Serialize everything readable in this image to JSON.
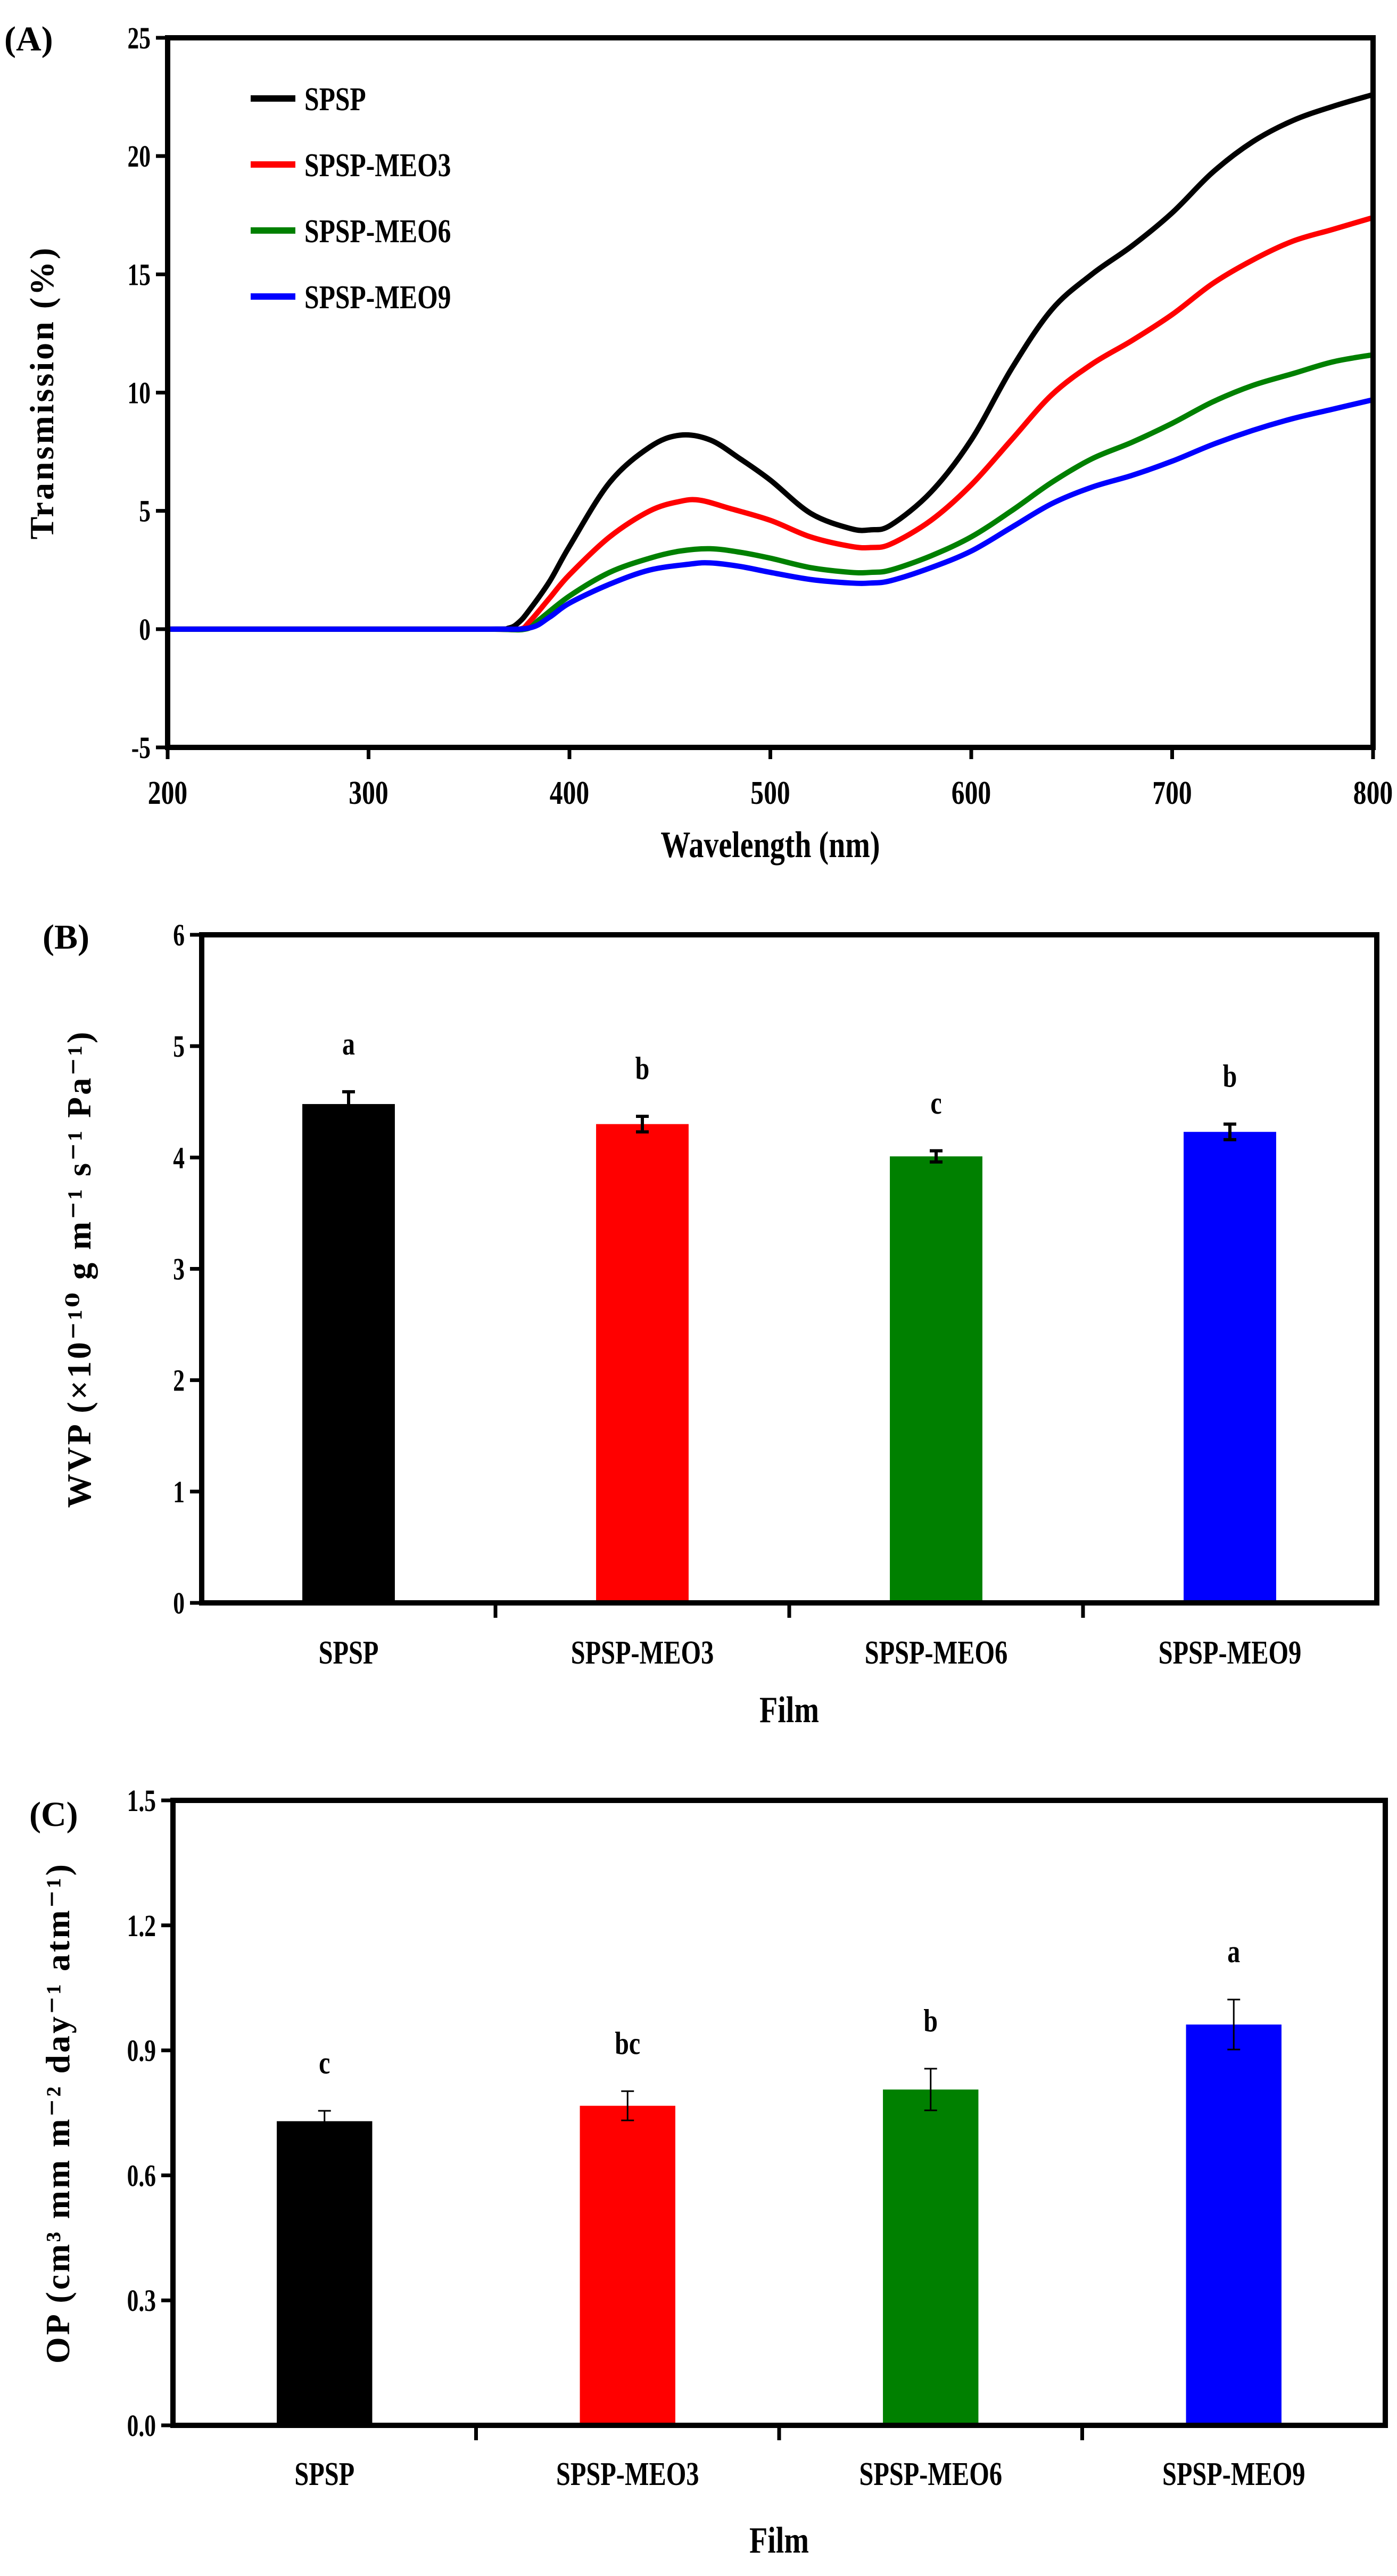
{
  "chart_data": [
    {
      "panel_label": "(A)",
      "type": "line",
      "xlabel": "Wavelength (nm)",
      "ylabel": "Transmission (%)",
      "xlim": [
        200,
        800
      ],
      "ylim": [
        -5,
        25
      ],
      "xticks": [
        200,
        300,
        400,
        500,
        600,
        700,
        800
      ],
      "yticks": [
        -5,
        0,
        5,
        10,
        15,
        20,
        25
      ],
      "grid": false,
      "legend_position": "top-left",
      "series": [
        {
          "name": "SPSP",
          "color": "#000000",
          "x": [
            200,
            300,
            360,
            370,
            375,
            380,
            390,
            400,
            420,
            440,
            455,
            470,
            485,
            500,
            520,
            540,
            550,
            560,
            580,
            600,
            620,
            640,
            660,
            680,
            700,
            720,
            740,
            760,
            780,
            800
          ],
          "y": [
            0,
            0,
            0,
            0.05,
            0.3,
            0.8,
            2.0,
            3.5,
            6.2,
            7.7,
            8.2,
            8.0,
            7.2,
            6.3,
            4.9,
            4.25,
            4.2,
            4.4,
            5.8,
            8.0,
            11.0,
            13.5,
            15.0,
            16.2,
            17.6,
            19.3,
            20.6,
            21.5,
            22.1,
            22.6
          ]
        },
        {
          "name": "SPSP-MEO3",
          "color": "#ff0000",
          "x": [
            200,
            300,
            360,
            375,
            380,
            390,
            400,
            420,
            440,
            455,
            465,
            480,
            500,
            520,
            540,
            550,
            560,
            580,
            600,
            620,
            640,
            660,
            680,
            700,
            720,
            740,
            760,
            780,
            800
          ],
          "y": [
            0,
            0,
            0,
            0,
            0.3,
            1.3,
            2.3,
            3.9,
            5.0,
            5.4,
            5.45,
            5.1,
            4.6,
            3.9,
            3.5,
            3.45,
            3.6,
            4.6,
            6.1,
            8.0,
            9.9,
            11.2,
            12.2,
            13.3,
            14.6,
            15.6,
            16.4,
            16.9,
            17.4
          ]
        },
        {
          "name": "SPSP-MEO6",
          "color": "#008000",
          "x": [
            200,
            300,
            360,
            378,
            385,
            400,
            420,
            440,
            455,
            470,
            485,
            500,
            520,
            540,
            550,
            560,
            580,
            600,
            620,
            640,
            660,
            680,
            700,
            720,
            740,
            760,
            780,
            800
          ],
          "y": [
            0,
            0,
            0,
            0,
            0.4,
            1.4,
            2.4,
            3.0,
            3.3,
            3.4,
            3.25,
            3.0,
            2.6,
            2.4,
            2.4,
            2.5,
            3.1,
            3.9,
            5.0,
            6.2,
            7.2,
            7.9,
            8.7,
            9.6,
            10.3,
            10.8,
            11.3,
            11.6
          ]
        },
        {
          "name": "SPSP-MEO9",
          "color": "#0000ff",
          "x": [
            200,
            300,
            360,
            380,
            390,
            400,
            420,
            440,
            460,
            470,
            485,
            500,
            520,
            540,
            550,
            560,
            580,
            600,
            620,
            640,
            660,
            680,
            700,
            720,
            740,
            760,
            780,
            800
          ],
          "y": [
            0,
            0,
            0,
            0.05,
            0.5,
            1.1,
            1.9,
            2.5,
            2.75,
            2.8,
            2.65,
            2.4,
            2.1,
            1.95,
            1.95,
            2.05,
            2.6,
            3.3,
            4.3,
            5.3,
            6.0,
            6.5,
            7.1,
            7.8,
            8.4,
            8.9,
            9.3,
            9.7
          ]
        }
      ]
    },
    {
      "panel_label": "(B)",
      "type": "bar",
      "xlabel": "Film",
      "ylabel": "WVP (×10⁻¹⁰ g m⁻¹ s⁻¹ Pa⁻¹)",
      "categories": [
        "SPSP",
        "SPSP-MEO3",
        "SPSP-MEO6",
        "SPSP-MEO9"
      ],
      "values": [
        4.48,
        4.3,
        4.01,
        4.23
      ],
      "errors": [
        0.11,
        0.07,
        0.05,
        0.07
      ],
      "labels": [
        "a",
        "b",
        "c",
        "b"
      ],
      "colors": [
        "#000000",
        "#ff0000",
        "#008000",
        "#0000ff"
      ],
      "ylim": [
        0,
        6
      ],
      "yticks": [
        "0",
        "1",
        "2",
        "3",
        "4",
        "5",
        "6"
      ],
      "grid": false
    },
    {
      "panel_label": "(C)",
      "type": "bar",
      "xlabel": "Film",
      "ylabel": "OP (cm³ mm m⁻² day⁻¹ atm⁻¹)",
      "categories": [
        "SPSP",
        "SPSP-MEO3",
        "SPSP-MEO6",
        "SPSP-MEO9"
      ],
      "values": [
        0.73,
        0.767,
        0.806,
        0.962
      ],
      "errors": [
        0.025,
        0.035,
        0.05,
        0.06
      ],
      "labels": [
        "c",
        "bc",
        "b",
        "a"
      ],
      "colors": [
        "#000000",
        "#ff0000",
        "#008000",
        "#0000ff"
      ],
      "ylim": [
        0,
        1.5
      ],
      "yticks": [
        "0.0",
        "0.3",
        "0.6",
        "0.9",
        "1.2",
        "1.5"
      ],
      "grid": false
    }
  ]
}
